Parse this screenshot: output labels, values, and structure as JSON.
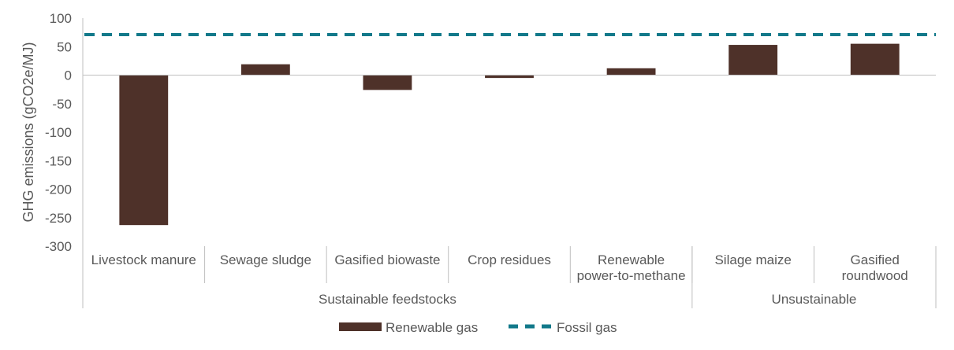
{
  "chart_data": {
    "type": "bar",
    "ylabel": "GHG emissions (gCO2e/MJ)",
    "ylim": [
      -300,
      100
    ],
    "yticks": [
      100,
      50,
      0,
      -50,
      -100,
      -150,
      -200,
      -250,
      -300
    ],
    "categories": [
      [
        "Livestock manure"
      ],
      [
        "Sewage sludge"
      ],
      [
        "Gasified biowaste"
      ],
      [
        "Crop residues"
      ],
      [
        "Renewable",
        "power-to-methane"
      ],
      [
        "Silage maize"
      ],
      [
        "Gasified",
        "roundwood"
      ]
    ],
    "groups": [
      {
        "label": "Sustainable feedstocks",
        "span": 5
      },
      {
        "label": "Unsustainable",
        "span": 2
      }
    ],
    "series": [
      {
        "name": "Renewable gas",
        "type": "bar",
        "color": "#4e3129",
        "values": [
          -263,
          19,
          -26,
          -5,
          12,
          53,
          55
        ]
      },
      {
        "name": "Fossil gas",
        "type": "line-dashed",
        "color": "#12798a",
        "value": 71
      }
    ],
    "legend": "bottom-center"
  }
}
